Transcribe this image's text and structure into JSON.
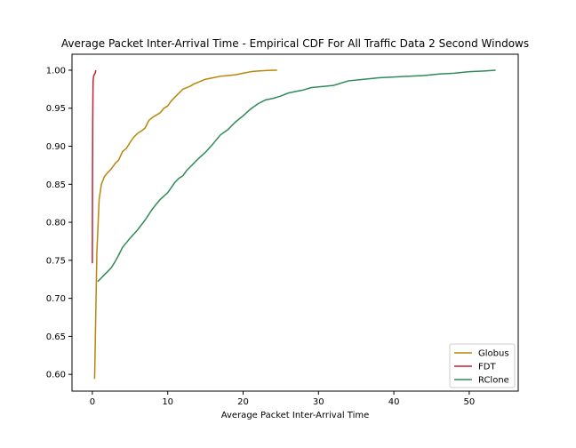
{
  "chart_data": {
    "type": "line",
    "title": "Average Packet Inter-Arrival Time - Empirical CDF For All Traffic Data 2 Second Windows",
    "xlabel": "Average Packet Inter-Arrival Time",
    "ylabel": "",
    "xlim": [
      -2.7,
      56.5
    ],
    "ylim": [
      0.578,
      1.021
    ],
    "xticks": [
      0,
      10,
      20,
      30,
      40,
      50
    ],
    "yticks": [
      0.6,
      0.65,
      0.7,
      0.75,
      0.8,
      0.85,
      0.9,
      0.95,
      1.0
    ],
    "xtick_labels": [
      "0",
      "10",
      "20",
      "30",
      "40",
      "50"
    ],
    "ytick_labels": [
      "0.60",
      "0.65",
      "0.70",
      "0.75",
      "0.80",
      "0.85",
      "0.90",
      "0.95",
      "1.00"
    ],
    "legend_position": "lower-right",
    "series": [
      {
        "name": "Globus",
        "color": "#b8860b",
        "x": [
          0.3,
          0.6,
          0.9,
          1.2,
          1.6,
          2.0,
          2.5,
          3.0,
          3.5,
          4.0,
          4.5,
          5.0,
          5.5,
          6.0,
          6.5,
          7.0,
          7.5,
          8.0,
          8.5,
          9.0,
          9.5,
          10.0,
          10.5,
          11.0,
          11.5,
          12.0,
          12.5,
          13.0,
          13.5,
          14.0,
          15.0,
          16.0,
          17.0,
          18.0,
          19.0,
          20.0,
          21.0,
          22.0,
          23.0,
          24.0,
          24.5
        ],
        "y": [
          0.594,
          0.76,
          0.83,
          0.85,
          0.86,
          0.865,
          0.87,
          0.877,
          0.882,
          0.893,
          0.897,
          0.905,
          0.912,
          0.917,
          0.92,
          0.924,
          0.934,
          0.938,
          0.941,
          0.944,
          0.95,
          0.953,
          0.96,
          0.965,
          0.97,
          0.975,
          0.977,
          0.979,
          0.982,
          0.984,
          0.988,
          0.99,
          0.992,
          0.993,
          0.994,
          0.996,
          0.998,
          0.999,
          0.9995,
          1.0,
          1.0
        ]
      },
      {
        "name": "FDT",
        "color": "#c42032",
        "x": [
          0.0,
          0.02,
          0.05,
          0.08,
          0.1,
          0.15,
          0.2,
          0.3,
          0.4,
          0.45
        ],
        "y": [
          0.746,
          0.85,
          0.93,
          0.97,
          0.985,
          0.991,
          0.993,
          0.995,
          0.997,
          1.0
        ]
      },
      {
        "name": "RClone",
        "color": "#2e8b57",
        "x": [
          0.7,
          1.0,
          1.5,
          2.0,
          2.5,
          3.0,
          3.5,
          4.0,
          4.5,
          5.0,
          6.0,
          7.0,
          8.0,
          9.0,
          10.0,
          11.0,
          11.5,
          12.0,
          12.5,
          13.0,
          14.0,
          15.0,
          16.0,
          17.0,
          18.0,
          19.0,
          20.0,
          21.0,
          22.0,
          23.0,
          24.0,
          25.0,
          26.0,
          27.0,
          28.0,
          29.0,
          30.0,
          32.0,
          34.0,
          36.0,
          38.0,
          40.0,
          42.0,
          44.0,
          46.0,
          48.0,
          50.0,
          52.0,
          53.5
        ],
        "y": [
          0.722,
          0.725,
          0.73,
          0.735,
          0.74,
          0.748,
          0.757,
          0.767,
          0.773,
          0.779,
          0.79,
          0.803,
          0.818,
          0.83,
          0.839,
          0.853,
          0.858,
          0.861,
          0.868,
          0.873,
          0.883,
          0.892,
          0.903,
          0.915,
          0.922,
          0.932,
          0.94,
          0.949,
          0.956,
          0.961,
          0.963,
          0.966,
          0.97,
          0.972,
          0.974,
          0.977,
          0.978,
          0.98,
          0.986,
          0.988,
          0.99,
          0.991,
          0.992,
          0.993,
          0.995,
          0.996,
          0.998,
          0.999,
          1.0
        ]
      }
    ]
  }
}
